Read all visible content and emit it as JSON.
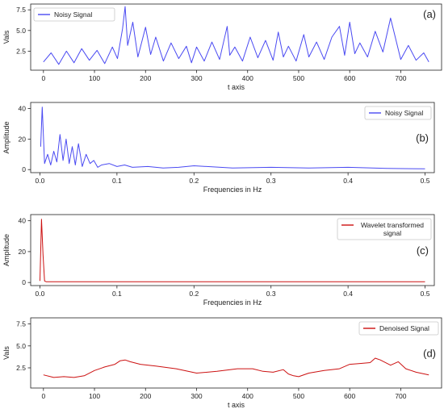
{
  "chart_data": [
    {
      "type": "line",
      "panel_tag": "(a)",
      "xlabel": "t axis",
      "ylabel": "Vals",
      "xlim": [
        -25,
        780
      ],
      "ylim": [
        0.2,
        8.2
      ],
      "xticks": [
        0,
        100,
        200,
        300,
        400,
        500,
        600,
        700
      ],
      "yticks": [
        2.5,
        5.0,
        7.5
      ],
      "ytick_labels": [
        "2.5",
        "5.0",
        "7.5"
      ],
      "legend": "top-left",
      "series": [
        {
          "name": "Noisy Signal",
          "color": "#4a4af2",
          "x": [
            0,
            15,
            30,
            45,
            60,
            75,
            90,
            105,
            120,
            135,
            145,
            155,
            160,
            165,
            175,
            185,
            200,
            210,
            220,
            235,
            250,
            265,
            280,
            290,
            300,
            315,
            330,
            345,
            360,
            365,
            375,
            390,
            405,
            420,
            435,
            450,
            460,
            470,
            480,
            495,
            510,
            520,
            535,
            550,
            565,
            580,
            590,
            600,
            610,
            620,
            635,
            650,
            665,
            680,
            690,
            700,
            715,
            730,
            745,
            755
          ],
          "y": [
            1.2,
            2.3,
            0.9,
            2.5,
            1.1,
            2.8,
            1.4,
            2.6,
            1.0,
            3.0,
            1.6,
            5.2,
            7.9,
            3.2,
            6.0,
            1.8,
            5.4,
            2.1,
            4.2,
            1.3,
            3.5,
            1.6,
            3.1,
            1.1,
            3.0,
            1.3,
            3.6,
            1.5,
            5.5,
            2.0,
            3.0,
            1.3,
            4.2,
            1.7,
            3.8,
            1.4,
            4.8,
            1.8,
            3.1,
            1.3,
            4.5,
            1.8,
            3.6,
            1.5,
            4.2,
            5.5,
            2.0,
            6.0,
            2.2,
            3.5,
            1.8,
            4.9,
            2.4,
            6.5,
            4.0,
            1.5,
            3.2,
            1.4,
            2.3,
            1.2
          ]
        }
      ]
    },
    {
      "type": "line",
      "panel_tag": "(b)",
      "xlabel": "Frequencies in Hz",
      "ylabel": "Amplitude",
      "xlim": [
        -0.012,
        0.512
      ],
      "ylim": [
        -2,
        44
      ],
      "xticks": [
        0.0,
        0.1,
        0.2,
        0.3,
        0.4,
        0.5
      ],
      "xtick_labels": [
        "0.0",
        "0.1",
        "0.2",
        "0.3",
        "0.4",
        "0.5"
      ],
      "yticks": [
        0,
        20,
        40
      ],
      "legend": "top-right",
      "series": [
        {
          "name": "Noisy Signal",
          "color": "#4a4af2",
          "x": [
            0.001,
            0.003,
            0.006,
            0.01,
            0.014,
            0.018,
            0.022,
            0.026,
            0.03,
            0.034,
            0.038,
            0.042,
            0.046,
            0.05,
            0.055,
            0.06,
            0.065,
            0.07,
            0.075,
            0.08,
            0.09,
            0.1,
            0.11,
            0.12,
            0.14,
            0.16,
            0.18,
            0.2,
            0.25,
            0.3,
            0.35,
            0.4,
            0.45,
            0.5
          ],
          "y": [
            15,
            41,
            4,
            10,
            3,
            12,
            5,
            23,
            6,
            20,
            4,
            15,
            3,
            17,
            2,
            10,
            4,
            6,
            1.5,
            3,
            4,
            2,
            3,
            1.5,
            2,
            1,
            1.5,
            2.5,
            1,
            1.5,
            1,
            1.5,
            0.8,
            0.5
          ]
        }
      ]
    },
    {
      "type": "line",
      "panel_tag": "(c)",
      "xlabel": "Frequencies in Hz",
      "ylabel": "Amplitude",
      "xlim": [
        -0.012,
        0.512
      ],
      "ylim": [
        -2,
        44
      ],
      "xticks": [
        0.0,
        0.1,
        0.2,
        0.3,
        0.4,
        0.5
      ],
      "xtick_labels": [
        "0.0",
        "0.1",
        "0.2",
        "0.3",
        "0.4",
        "0.5"
      ],
      "yticks": [
        0,
        20,
        40
      ],
      "legend": "top-right",
      "series": [
        {
          "name": "Wavelet transformed signal",
          "legend_lines": [
            "Wavelet transformed",
            "signal"
          ],
          "color": "#cc1111",
          "x": [
            0.0,
            0.002,
            0.004,
            0.006,
            0.008,
            0.5
          ],
          "y": [
            1,
            41,
            18,
            1,
            0.5,
            0.5
          ]
        }
      ]
    },
    {
      "type": "line",
      "panel_tag": "(d)",
      "xlabel": "t axis",
      "ylabel": "Vals",
      "xlim": [
        -25,
        780
      ],
      "ylim": [
        0.2,
        8.2
      ],
      "xticks": [
        0,
        100,
        200,
        300,
        400,
        500,
        600,
        700
      ],
      "yticks": [
        2.5,
        5.0,
        7.5
      ],
      "ytick_labels": [
        "2.5",
        "5.0",
        "7.5"
      ],
      "legend": "top-right",
      "series": [
        {
          "name": "Denoised Signal",
          "color": "#cc1111",
          "x": [
            0,
            20,
            40,
            60,
            80,
            100,
            120,
            140,
            150,
            160,
            170,
            190,
            220,
            260,
            300,
            340,
            380,
            410,
            430,
            450,
            470,
            480,
            490,
            500,
            520,
            550,
            580,
            600,
            620,
            640,
            650,
            660,
            680,
            695,
            710,
            730,
            755
          ],
          "y": [
            1.7,
            1.4,
            1.5,
            1.4,
            1.6,
            2.2,
            2.6,
            2.9,
            3.3,
            3.4,
            3.2,
            2.9,
            2.7,
            2.4,
            1.9,
            2.1,
            2.4,
            2.4,
            2.1,
            2.0,
            2.3,
            1.8,
            1.6,
            1.5,
            1.9,
            2.2,
            2.4,
            2.9,
            3.0,
            3.1,
            3.6,
            3.4,
            2.8,
            3.2,
            2.4,
            2.0,
            1.7
          ]
        }
      ]
    }
  ]
}
